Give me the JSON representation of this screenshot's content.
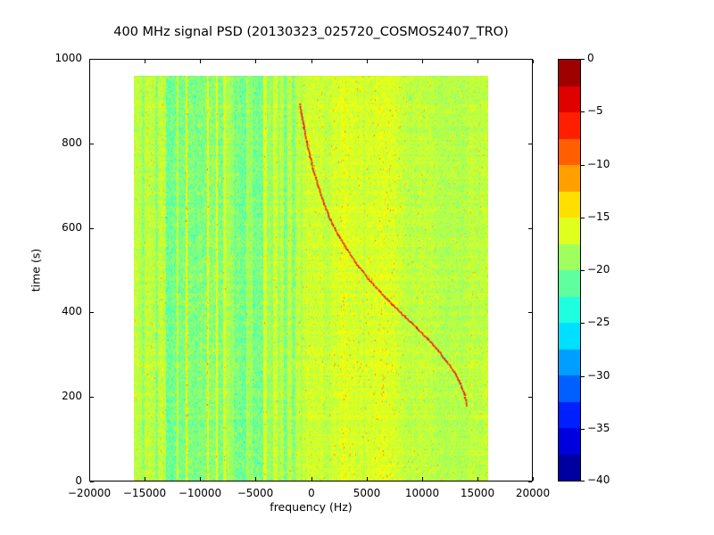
{
  "chart_data": {
    "type": "heatmap",
    "title": "400 MHz signal PSD (20130323_025720_COSMOS2407_TRO)",
    "xlabel": "frequency (Hz)",
    "ylabel": "time (s)",
    "xlim": [
      -20000,
      20000
    ],
    "ylim": [
      0,
      1000
    ],
    "xticks": [
      -20000,
      -15000,
      -10000,
      -5000,
      0,
      5000,
      10000,
      15000,
      20000
    ],
    "xtick_labels": [
      "−20000",
      "−15000",
      "−10000",
      "−5000",
      "0",
      "5000",
      "10000",
      "15000",
      "20000"
    ],
    "yticks": [
      0,
      200,
      400,
      600,
      800,
      1000
    ],
    "ytick_labels": [
      "0",
      "200",
      "400",
      "600",
      "800",
      "1000"
    ],
    "colormap": "jet",
    "colorbar": {
      "min": -40,
      "max": 0,
      "ticks": [
        0,
        -5,
        -10,
        -15,
        -20,
        -25,
        -30,
        -35,
        -40
      ],
      "tick_labels": [
        "0",
        "−5",
        "−10",
        "−15",
        "−20",
        "−25",
        "−30",
        "−35",
        "−40"
      ],
      "segments": 16
    },
    "data_extent": {
      "freq": [
        -16000,
        16000
      ],
      "time": [
        0,
        960
      ]
    },
    "noise": {
      "background_db": -17.2,
      "row_jitter": 0.5,
      "col_wander": 1.1,
      "spread_quiet": 1.5,
      "spread_band": 2.4,
      "speckle_bright_p": 0.018,
      "speckle_bright_boost": 4.2,
      "speckle_dark_p": 0.012,
      "speckle_dark_drop": 3.2
    },
    "bands": [
      [
        -15300,
        -15000,
        -19.2
      ],
      [
        -14100,
        -13850,
        -19.0
      ],
      [
        -13100,
        -12100,
        -20.3
      ],
      [
        -11950,
        -9400,
        -20.8
      ],
      [
        -9250,
        -8600,
        -20.5
      ],
      [
        -8450,
        -7900,
        -20.8
      ],
      [
        -7700,
        -7000,
        -19.4
      ],
      [
        -6950,
        -5850,
        -20.6
      ],
      [
        -5800,
        -5400,
        -18.6
      ],
      [
        -5250,
        -4300,
        -20.4
      ],
      [
        -3950,
        -3450,
        -19.8
      ],
      [
        -3000,
        -2800,
        -18.8
      ],
      [
        -2450,
        -2150,
        -19.9
      ],
      [
        -1700,
        -1400,
        -19.6
      ],
      [
        -900,
        -750,
        -18.6
      ],
      [
        -11320,
        -11180,
        -15.8
      ],
      [
        -9400,
        -9260,
        -16.0
      ],
      [
        -8600,
        -8460,
        -16.4
      ],
      [
        -4300,
        -4180,
        -16.3
      ],
      [
        -350,
        -250,
        -16.4
      ],
      [
        950,
        1050,
        -16.6
      ],
      [
        2980,
        3090,
        -16.6
      ],
      [
        4750,
        4850,
        -18.2
      ],
      [
        6500,
        6590,
        -16.8
      ],
      [
        9000,
        9090,
        -18.0
      ],
      [
        11500,
        11590,
        -16.9
      ]
    ],
    "doppler_track": {
      "db": -5,
      "points": [
        [
          -1050,
          895
        ],
        [
          -900,
          870
        ],
        [
          -700,
          840
        ],
        [
          -450,
          805
        ],
        [
          -150,
          770
        ],
        [
          200,
          735
        ],
        [
          600,
          700
        ],
        [
          1100,
          660
        ],
        [
          1700,
          620
        ],
        [
          2400,
          585
        ],
        [
          3200,
          550
        ],
        [
          4100,
          515
        ],
        [
          5100,
          482
        ],
        [
          6200,
          450
        ],
        [
          7300,
          420
        ],
        [
          8400,
          392
        ],
        [
          9500,
          365
        ],
        [
          10500,
          338
        ],
        [
          11400,
          312
        ],
        [
          12200,
          286
        ],
        [
          12900,
          260
        ],
        [
          13400,
          234
        ],
        [
          13800,
          208
        ],
        [
          14000,
          182
        ]
      ]
    },
    "faint_track": {
      "db": -15.2,
      "opacity": 0.55,
      "points": [
        [
          -15800,
          228
        ],
        [
          -4900,
          602
        ]
      ]
    }
  }
}
